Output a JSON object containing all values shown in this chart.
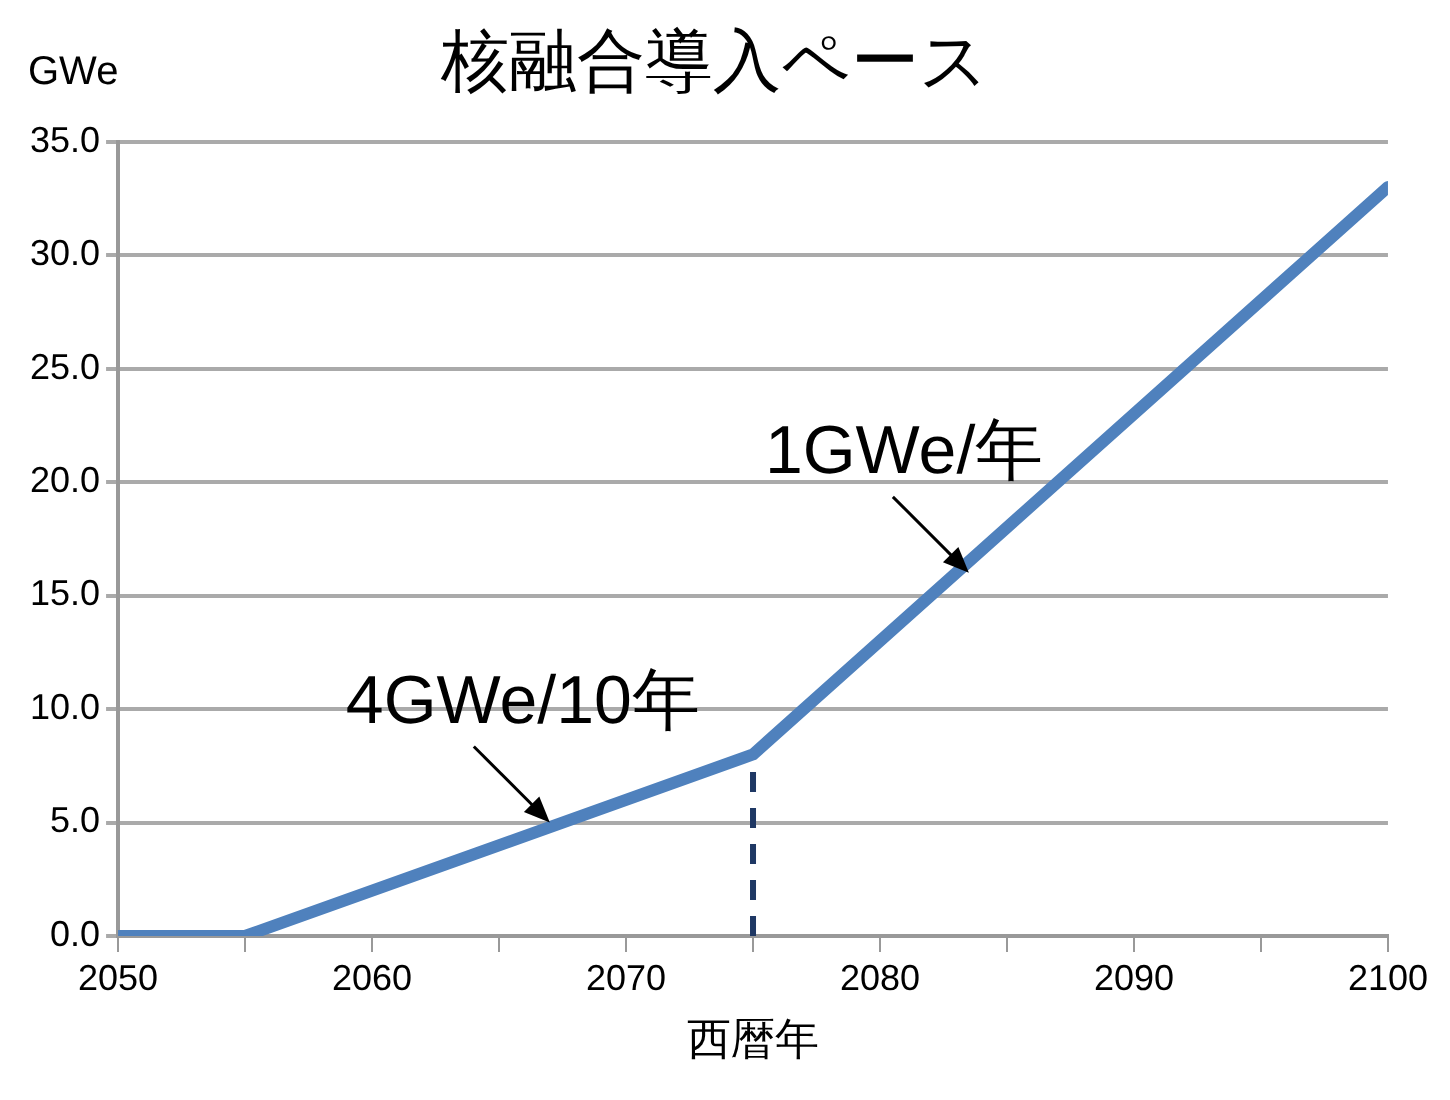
{
  "chart_data": {
    "type": "line",
    "title": "核融合導入ペース",
    "xlabel": "西暦年",
    "ylabel": "GWe",
    "x": [
      2050,
      2055,
      2075,
      2100
    ],
    "series": [
      {
        "color": "#4f81bd",
        "values": [
          0,
          0,
          8,
          33
        ]
      }
    ],
    "xlim": [
      2050,
      2100
    ],
    "xticks": [
      2050,
      {
        "value": 2055,
        "label": null
      },
      2060,
      {
        "value": 2065,
        "label": null
      },
      2070,
      {
        "value": 2075,
        "label": null
      },
      2080,
      {
        "value": 2085,
        "label": null
      },
      2090,
      {
        "value": 2095,
        "label": null
      },
      2100
    ],
    "ylim": [
      0,
      35
    ],
    "yticks": [
      {
        "value": 0,
        "label": "0.0"
      },
      {
        "value": 5,
        "label": "5.0"
      },
      {
        "value": 10,
        "label": "10.0"
      },
      {
        "value": 15,
        "label": "15.0"
      },
      {
        "value": 20,
        "label": "20.0"
      },
      {
        "value": 25,
        "label": "25.0"
      },
      {
        "value": 30,
        "label": "30.0"
      },
      {
        "value": 35,
        "label": "35.0"
      }
    ],
    "grid": "y",
    "legend": false,
    "marker": "none",
    "line_style": "solid",
    "ref_lines": [
      {
        "axis": "x",
        "value": 2075,
        "color": "#1f3864",
        "line_style": "dashed"
      }
    ],
    "annotations": [
      {
        "text": "4GWe/10年",
        "x": 2067,
        "y": 5
      },
      {
        "text": "1GWe/年",
        "x": 2083.5,
        "y": 16
      }
    ]
  }
}
